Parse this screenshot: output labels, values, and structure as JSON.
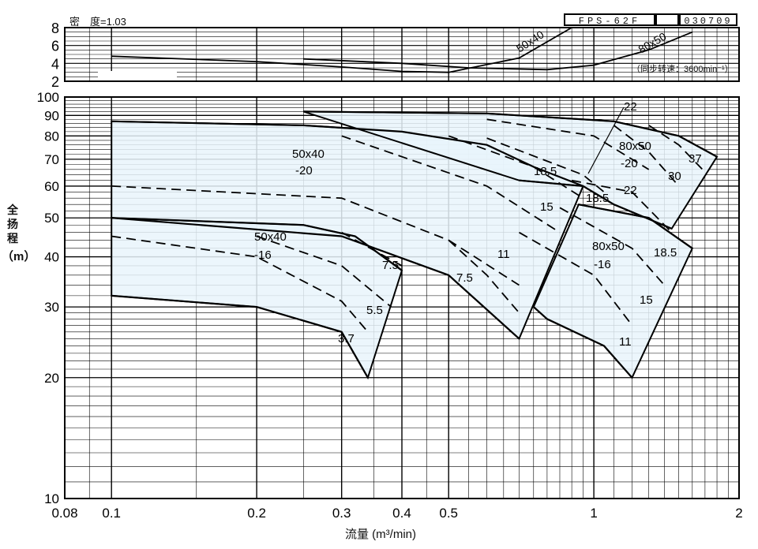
{
  "header": {
    "density_label": "密　度=1.03",
    "model": "FPS-62F",
    "code": "030709",
    "speed_note": "（同步转速：3600min⁻¹）"
  },
  "axes": {
    "ylabel_chars": [
      "全",
      "扬",
      "程"
    ],
    "ylabel_unit": "（m）",
    "xlabel": "流量 (m³/min)",
    "x_ticks": [
      "0.08",
      "0.1",
      "0.2",
      "0.3",
      "0.4",
      "0.5",
      "1",
      "2"
    ],
    "main_y_ticks": [
      "10",
      "20",
      "30",
      "40",
      "50",
      "60",
      "70",
      "80",
      "90",
      "100"
    ],
    "top_y_ticks": [
      "2",
      "4",
      "6",
      "8"
    ]
  },
  "chart_data": [
    {
      "type": "line",
      "title": "",
      "note": "密　度=1.03",
      "x_scale": "log",
      "xlim": [
        0.08,
        2
      ],
      "ylim": [
        2,
        8
      ],
      "grid": true,
      "series": [
        {
          "name": "50x40",
          "x": [
            0.1,
            0.2,
            0.3,
            0.4,
            0.5,
            0.7,
            0.9
          ],
          "y": [
            4.8,
            4.2,
            3.6,
            3.1,
            3.0,
            4.6,
            8.0
          ]
        },
        {
          "name": "80x50",
          "x": [
            0.25,
            0.4,
            0.55,
            0.8,
            1.0,
            1.3,
            1.6
          ],
          "y": [
            4.5,
            4.0,
            3.5,
            3.3,
            3.8,
            5.5,
            7.5
          ]
        }
      ],
      "annotations": [
        "(同步转速：3600min⁻¹)"
      ]
    },
    {
      "type": "line",
      "title": "",
      "xlabel": "流量 (m³/min)",
      "ylabel": "全扬程 (m)",
      "x_scale": "log",
      "y_scale": "log",
      "xlim": [
        0.08,
        2
      ],
      "ylim": [
        10,
        100
      ],
      "grid": true,
      "regions": [
        {
          "name": "50x40-20",
          "points": [
            [
              0.1,
              87
            ],
            [
              0.25,
              85
            ],
            [
              0.4,
              82
            ],
            [
              0.6,
              76
            ],
            [
              0.75,
              67
            ],
            [
              0.95,
              60
            ],
            [
              0.7,
              25
            ],
            [
              0.5,
              36
            ],
            [
              0.3,
              45
            ],
            [
              0.1,
              50
            ]
          ]
        },
        {
          "name": "50x40-16",
          "points": [
            [
              0.1,
              50
            ],
            [
              0.25,
              48
            ],
            [
              0.32,
              45
            ],
            [
              0.4,
              37
            ],
            [
              0.34,
              20
            ],
            [
              0.3,
              26
            ],
            [
              0.2,
              30
            ],
            [
              0.1,
              32
            ]
          ]
        },
        {
          "name": "80x50-20",
          "points": [
            [
              0.25,
              92
            ],
            [
              0.6,
              91
            ],
            [
              1.1,
              87
            ],
            [
              1.5,
              80
            ],
            [
              1.8,
              71
            ],
            [
              1.45,
              47
            ],
            [
              1.1,
              54
            ],
            [
              0.95,
              60
            ],
            [
              0.7,
              62
            ]
          ]
        },
        {
          "name": "80x50-16",
          "points": [
            [
              0.93,
              54
            ],
            [
              1.3,
              50
            ],
            [
              1.6,
              42
            ],
            [
              1.2,
              20
            ],
            [
              1.05,
              24
            ],
            [
              0.8,
              28
            ],
            [
              0.75,
              30
            ]
          ]
        }
      ],
      "series": [
        {
          "name": "50x40-20 max",
          "x": [
            0.1,
            0.25,
            0.4,
            0.6,
            0.75,
            0.95
          ],
          "y": [
            87,
            85,
            82,
            76,
            67,
            60
          ]
        },
        {
          "name": "50x40-20 min",
          "x": [
            0.1,
            0.3,
            0.5,
            0.7
          ],
          "y": [
            50,
            45,
            36,
            25
          ]
        },
        {
          "name": "50x40-16 max",
          "x": [
            0.1,
            0.25,
            0.32,
            0.4
          ],
          "y": [
            50,
            48,
            45,
            37
          ]
        },
        {
          "name": "50x40-16 min",
          "x": [
            0.1,
            0.2,
            0.3,
            0.34
          ],
          "y": [
            32,
            30,
            26,
            20
          ]
        },
        {
          "name": "80x50-20 max",
          "x": [
            0.25,
            0.6,
            1.1,
            1.5,
            1.8
          ],
          "y": [
            92,
            91,
            87,
            80,
            71
          ]
        },
        {
          "name": "80x50-20 min",
          "x": [
            0.7,
            0.95,
            1.1,
            1.45
          ],
          "y": [
            62,
            60,
            54,
            47
          ]
        },
        {
          "name": "80x50-16 max",
          "x": [
            0.93,
            1.3,
            1.6
          ],
          "y": [
            54,
            50,
            42
          ]
        },
        {
          "name": "80x50-16 min",
          "x": [
            0.75,
            0.8,
            1.05,
            1.2
          ],
          "y": [
            30,
            28,
            24,
            20
          ]
        }
      ],
      "motor_lines": [
        {
          "name": "3.7",
          "x": [
            0.1,
            0.2,
            0.3,
            0.34
          ],
          "y": [
            45,
            40,
            31,
            26
          ]
        },
        {
          "name": "5.5",
          "x": [
            0.2,
            0.3,
            0.38
          ],
          "y": [
            45,
            38,
            30
          ]
        },
        {
          "name": "7.5",
          "x": [
            0.3,
            0.4
          ],
          "y": [
            46,
            38
          ]
        },
        {
          "name": "7.5",
          "x": [
            0.5,
            0.6,
            0.7
          ],
          "y": [
            44,
            36,
            29
          ]
        },
        {
          "name": "11",
          "x": [
            0.1,
            0.3,
            0.5,
            0.7
          ],
          "y": [
            60,
            56,
            44,
            34
          ]
        },
        {
          "name": "15",
          "x": [
            0.3,
            0.6,
            0.85
          ],
          "y": [
            80,
            60,
            46
          ]
        },
        {
          "name": "18.5",
          "x": [
            0.5,
            0.75,
            0.95
          ],
          "y": [
            80,
            67,
            56
          ]
        },
        {
          "name": "22",
          "x": [
            0.6,
            0.95,
            1.05
          ],
          "y": [
            79,
            64,
            58
          ]
        },
        {
          "name": "11",
          "x": [
            0.7,
            1.0,
            1.2
          ],
          "y": [
            46,
            36,
            27
          ]
        },
        {
          "name": "15",
          "x": [
            0.85,
            1.2,
            1.4
          ],
          "y": [
            53,
            42,
            34
          ]
        },
        {
          "name": "18.5",
          "x": [
            0.9,
            1.2,
            1.45
          ],
          "y": [
            62,
            58,
            46
          ]
        },
        {
          "name": "22",
          "x": [
            0.6,
            1.0,
            1.3
          ],
          "y": [
            88,
            80,
            66
          ]
        },
        {
          "name": "30",
          "x": [
            1.1,
            1.3,
            1.5
          ],
          "y": [
            85,
            73,
            60
          ]
        },
        {
          "name": "37",
          "x": [
            1.3,
            1.5,
            1.7
          ],
          "y": [
            85,
            76,
            65
          ]
        }
      ],
      "labels": [
        "50x40",
        "-20",
        "50x40",
        "-16",
        "80x50",
        "-20",
        "80x50",
        "-16",
        "3.7",
        "5.5",
        "7.5",
        "7.5",
        "11",
        "11",
        "15",
        "15",
        "18.5",
        "18.5",
        "18.5",
        "22",
        "22",
        "30",
        "37"
      ]
    }
  ],
  "style": {
    "fill": "#e9f4fb",
    "line": "#000000",
    "grid": "#000000",
    "background": "#ffffff"
  }
}
